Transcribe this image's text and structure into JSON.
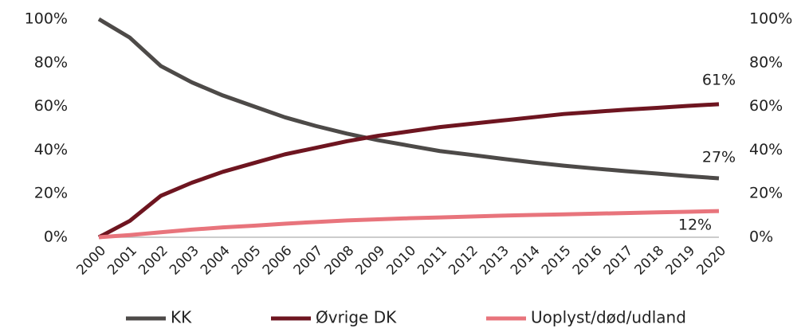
{
  "chart_data": {
    "type": "line",
    "categories": [
      "2000",
      "2001",
      "2002",
      "2003",
      "2004",
      "2005",
      "2006",
      "2007",
      "2008",
      "2009",
      "2010",
      "2011",
      "2012",
      "2013",
      "2014",
      "2015",
      "2016",
      "2017",
      "2018",
      "2019",
      "2020"
    ],
    "series": [
      {
        "name": "KK",
        "color": "#4d4a48",
        "values": [
          100,
          91.5,
          78.5,
          71,
          65,
          60,
          55,
          51,
          47.5,
          44.5,
          42,
          39.5,
          37.8,
          36,
          34.3,
          32.8,
          31.5,
          30.3,
          29.2,
          28,
          27
        ],
        "value_labels": [
          null,
          null,
          null,
          null,
          null,
          null,
          null,
          null,
          null,
          null,
          null,
          null,
          null,
          null,
          null,
          null,
          null,
          null,
          null,
          null,
          "27%"
        ]
      },
      {
        "name": "Øvrige DK",
        "color": "#6e1520",
        "values": [
          0,
          7.5,
          19,
          25,
          30,
          34,
          38,
          41,
          44,
          46.5,
          48.5,
          50.5,
          52,
          53.5,
          55,
          56.5,
          57.5,
          58.5,
          59.3,
          60.2,
          61
        ],
        "value_labels": [
          null,
          null,
          null,
          null,
          null,
          null,
          null,
          null,
          null,
          null,
          null,
          null,
          null,
          null,
          null,
          null,
          null,
          null,
          null,
          null,
          "61%"
        ]
      },
      {
        "name": "Uoplyst/død/udland",
        "color": "#e8747c",
        "values": [
          0,
          1,
          2.3,
          3.5,
          4.5,
          5.3,
          6.2,
          7,
          7.7,
          8.2,
          8.7,
          9.1,
          9.5,
          9.9,
          10.2,
          10.5,
          10.8,
          11.1,
          11.4,
          11.7,
          12
        ],
        "value_labels": [
          null,
          null,
          null,
          null,
          null,
          null,
          null,
          null,
          null,
          null,
          null,
          null,
          null,
          null,
          null,
          null,
          null,
          null,
          null,
          null,
          "12%"
        ]
      }
    ],
    "ylim": [
      0,
      100
    ],
    "yticks": [
      {
        "value": 0,
        "label": "0%"
      },
      {
        "value": 20,
        "label": "20%"
      },
      {
        "value": 40,
        "label": "40%"
      },
      {
        "value": 60,
        "label": "60%"
      },
      {
        "value": 80,
        "label": "80%"
      },
      {
        "value": 100,
        "label": "100%"
      }
    ],
    "y2lim": [
      0,
      100
    ],
    "y2ticks": [
      {
        "value": 0,
        "label": "0%"
      },
      {
        "value": 20,
        "label": "20%"
      },
      {
        "value": 40,
        "label": "40%"
      },
      {
        "value": 60,
        "label": "60%"
      },
      {
        "value": 80,
        "label": "80%"
      },
      {
        "value": 100,
        "label": "100%"
      }
    ],
    "legend": "bottom"
  }
}
